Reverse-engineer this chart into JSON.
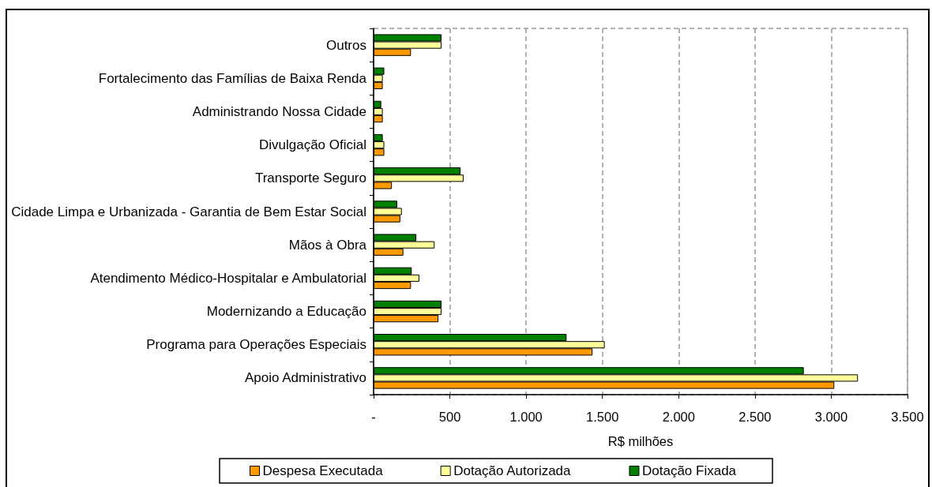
{
  "chart_data": {
    "type": "bar",
    "orientation": "horizontal",
    "categories": [
      "Outros",
      "Fortalecimento das Famílias de Baixa Renda",
      "Administrando Nossa Cidade",
      "Divulgação Oficial",
      "Transporte Seguro",
      "Cidade Limpa e Urbanizada - Garantia de Bem Estar Social",
      "Mãos à Obra",
      "Atendimento Médico-Hospitalar e Ambulatorial",
      "Modernizando a Educação",
      "Programa para Operações Especiais",
      "Apoio Administrativo"
    ],
    "series": [
      {
        "name": "Despesa Executada",
        "color": "#ff9900",
        "values": [
          245,
          60,
          60,
          70,
          120,
          175,
          195,
          245,
          425,
          1435,
          3020
        ]
      },
      {
        "name": "Dotação Autorizada",
        "color": "#ffff99",
        "values": [
          445,
          60,
          60,
          70,
          590,
          185,
          400,
          300,
          445,
          1515,
          3175
        ]
      },
      {
        "name": "Dotação Fixada",
        "color": "#008000",
        "values": [
          445,
          70,
          50,
          60,
          570,
          155,
          280,
          250,
          445,
          1265,
          2820
        ]
      }
    ],
    "xlabel": "R$ milhões",
    "xlim": [
      0,
      3500
    ],
    "xticks": [
      {
        "value": 0,
        "label": "-"
      },
      500,
      {
        "value": 1000,
        "label": "1.000"
      },
      {
        "value": 1500,
        "label": "1.500"
      },
      {
        "value": 2000,
        "label": "2.000"
      },
      {
        "value": 2500,
        "label": "2.500"
      },
      {
        "value": 3000,
        "label": "3.000"
      },
      {
        "value": 3500,
        "label": "3.500"
      }
    ],
    "grid": "x",
    "legend": "bottom"
  }
}
